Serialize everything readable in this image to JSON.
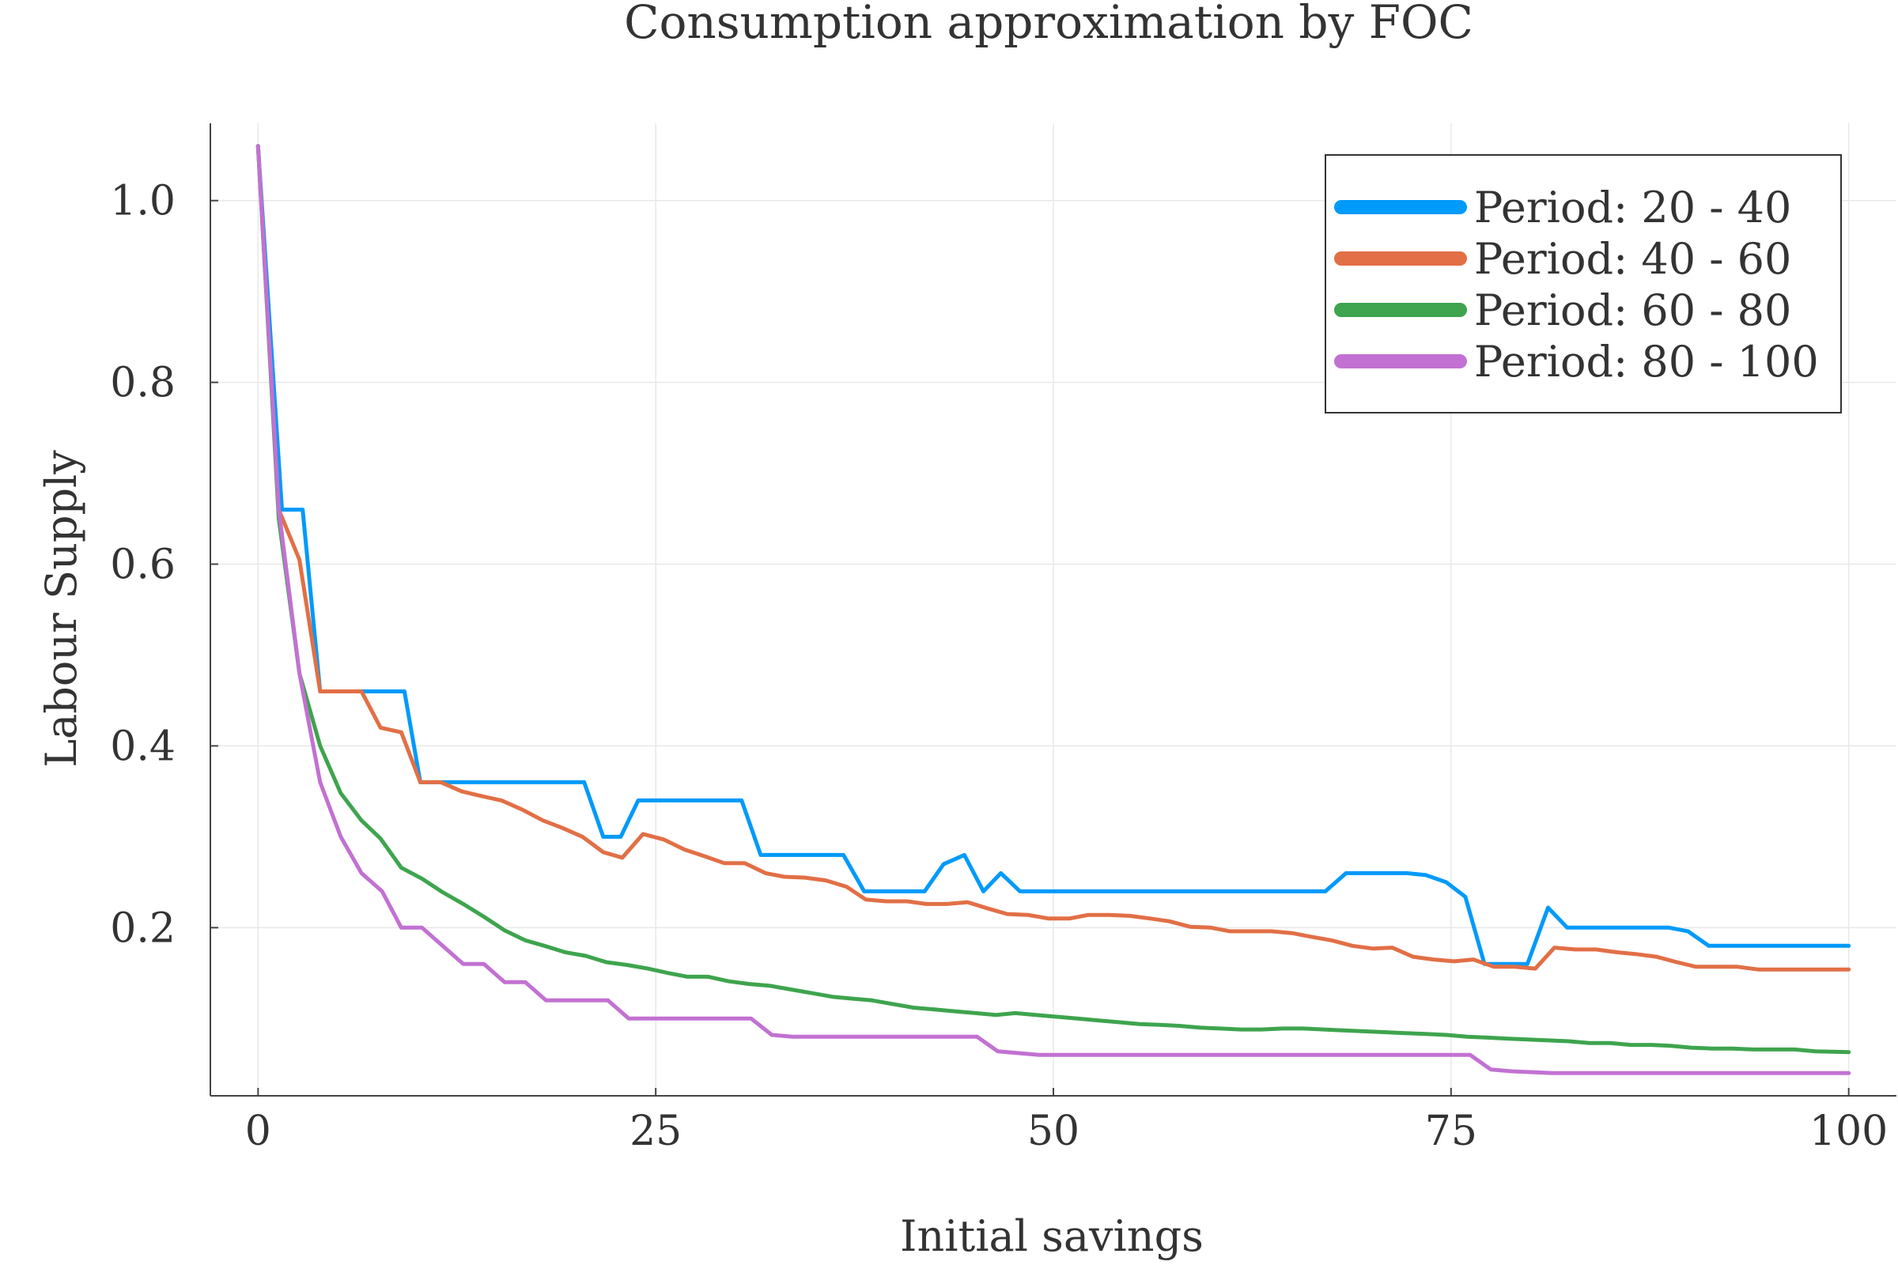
{
  "chart_data": {
    "type": "line",
    "title": "Consumption approximation by FOC",
    "xlabel": "Initial savings",
    "ylabel": "Labour Supply",
    "xlim": [
      -3,
      103
    ],
    "ylim": [
      0.015,
      1.085
    ],
    "xticks": [
      0,
      25,
      50,
      75,
      100
    ],
    "xtick_labels": [
      "0",
      "25",
      "50",
      "75",
      "100"
    ],
    "yticks": [
      0.2,
      0.4,
      0.6,
      0.8,
      1.0
    ],
    "ytick_labels": [
      "0.2",
      "0.4",
      "0.6",
      "0.8",
      "1.0"
    ],
    "grid": true,
    "legend_position": "top-right",
    "series": [
      {
        "name": "Period: 20 - 40",
        "color": "#009AFA",
        "x": [
          0,
          1.5,
          2.8,
          3.9,
          6.5,
          9.2,
          10.2,
          20.5,
          21.7,
          22.8,
          23.9,
          30.4,
          31.6,
          36.8,
          38.1,
          41.9,
          43.1,
          44.4,
          45.6,
          46.7,
          47.9,
          67.1,
          68.4,
          72.2,
          73.4,
          74.7,
          75.9,
          77.1,
          79.8,
          81.1,
          82.3,
          88.7,
          89.9,
          91.2,
          100
        ],
        "values": [
          1.06,
          0.66,
          0.66,
          0.46,
          0.46,
          0.46,
          0.36,
          0.36,
          0.3,
          0.3,
          0.34,
          0.34,
          0.28,
          0.28,
          0.24,
          0.24,
          0.27,
          0.28,
          0.24,
          0.26,
          0.24,
          0.24,
          0.26,
          0.26,
          0.258,
          0.25,
          0.234,
          0.16,
          0.16,
          0.222,
          0.2,
          0.2,
          0.196,
          0.18,
          0.18
        ]
      },
      {
        "name": "Period: 40 - 60",
        "color": "#E26F46",
        "x": [
          0,
          1.3,
          2.6,
          3.9,
          6.5,
          7.7,
          9.0,
          10.2,
          11.5,
          12.8,
          14.0,
          15.3,
          16.6,
          17.9,
          19.1,
          20.4,
          21.7,
          22.9,
          24.2,
          25.5,
          26.8,
          28.0,
          29.3,
          30.6,
          31.9,
          33.1,
          34.4,
          35.7,
          37.0,
          38.2,
          39.5,
          40.8,
          42.0,
          43.3,
          44.6,
          45.9,
          47.1,
          48.4,
          49.7,
          51.0,
          52.2,
          53.5,
          54.8,
          56.1,
          57.3,
          58.6,
          59.9,
          61.1,
          62.4,
          63.7,
          65.0,
          66.2,
          67.5,
          68.8,
          70.1,
          71.3,
          72.6,
          73.9,
          75.2,
          76.4,
          77.7,
          79.0,
          80.3,
          81.5,
          82.8,
          84.1,
          85.4,
          86.6,
          87.9,
          89.2,
          90.4,
          91.7,
          93.0,
          94.3,
          95.5,
          96.8,
          98.1,
          100
        ],
        "values": [
          1.06,
          0.66,
          0.605,
          0.46,
          0.46,
          0.42,
          0.415,
          0.36,
          0.36,
          0.35,
          0.345,
          0.34,
          0.33,
          0.318,
          0.31,
          0.3,
          0.283,
          0.277,
          0.303,
          0.297,
          0.286,
          0.279,
          0.271,
          0.271,
          0.26,
          0.256,
          0.255,
          0.252,
          0.245,
          0.231,
          0.229,
          0.229,
          0.226,
          0.226,
          0.228,
          0.221,
          0.215,
          0.214,
          0.21,
          0.21,
          0.214,
          0.214,
          0.213,
          0.21,
          0.207,
          0.201,
          0.2,
          0.196,
          0.196,
          0.196,
          0.194,
          0.19,
          0.186,
          0.18,
          0.177,
          0.178,
          0.168,
          0.165,
          0.163,
          0.165,
          0.157,
          0.157,
          0.155,
          0.178,
          0.176,
          0.176,
          0.173,
          0.171,
          0.168,
          0.162,
          0.157,
          0.157,
          0.157,
          0.154,
          0.154,
          0.154,
          0.154,
          0.154
        ]
      },
      {
        "name": "Period: 60 - 80",
        "color": "#3EA44E",
        "x": [
          0,
          1.3,
          2.6,
          3.9,
          5.2,
          6.5,
          7.7,
          9.0,
          10.3,
          11.6,
          12.9,
          14.2,
          15.5,
          16.8,
          18.0,
          19.3,
          20.6,
          21.9,
          23.2,
          24.5,
          25.8,
          27.0,
          28.3,
          29.6,
          30.9,
          32.2,
          33.5,
          34.8,
          36.1,
          37.3,
          38.6,
          39.9,
          41.2,
          42.5,
          43.8,
          45.1,
          46.4,
          47.6,
          48.9,
          50.2,
          51.5,
          52.8,
          54.1,
          55.4,
          56.7,
          57.9,
          59.2,
          60.5,
          61.8,
          63.1,
          64.4,
          65.7,
          67.0,
          68.2,
          69.5,
          70.8,
          72.1,
          73.4,
          74.7,
          76.0,
          77.3,
          78.5,
          79.8,
          81.1,
          82.4,
          83.7,
          85.0,
          86.3,
          87.6,
          88.8,
          90.1,
          91.4,
          92.7,
          94.0,
          95.3,
          96.6,
          97.9,
          100
        ],
        "values": [
          1.06,
          0.65,
          0.48,
          0.4,
          0.348,
          0.318,
          0.298,
          0.266,
          0.254,
          0.239,
          0.226,
          0.212,
          0.197,
          0.186,
          0.18,
          0.173,
          0.169,
          0.162,
          0.159,
          0.155,
          0.15,
          0.146,
          0.146,
          0.141,
          0.138,
          0.136,
          0.132,
          0.128,
          0.124,
          0.122,
          0.12,
          0.116,
          0.112,
          0.11,
          0.108,
          0.106,
          0.104,
          0.106,
          0.104,
          0.102,
          0.1,
          0.098,
          0.096,
          0.094,
          0.093,
          0.092,
          0.09,
          0.089,
          0.088,
          0.088,
          0.089,
          0.089,
          0.088,
          0.087,
          0.086,
          0.085,
          0.084,
          0.083,
          0.082,
          0.08,
          0.079,
          0.078,
          0.077,
          0.076,
          0.075,
          0.073,
          0.073,
          0.071,
          0.071,
          0.07,
          0.068,
          0.067,
          0.067,
          0.066,
          0.066,
          0.066,
          0.064,
          0.063
        ]
      },
      {
        "name": "Period: 80 - 100",
        "color": "#C271D2",
        "x": [
          0,
          1.3,
          2.6,
          3.9,
          5.2,
          6.5,
          7.8,
          9.0,
          10.3,
          11.6,
          12.9,
          14.2,
          15.5,
          16.8,
          18.1,
          19.4,
          20.7,
          22.0,
          23.3,
          24.5,
          25.8,
          27.1,
          28.4,
          29.7,
          31.0,
          32.3,
          33.6,
          34.9,
          36.2,
          37.5,
          38.8,
          40.0,
          41.3,
          42.6,
          43.9,
          45.2,
          46.5,
          47.8,
          49.1,
          50.4,
          51.7,
          53.0,
          54.3,
          55.6,
          56.8,
          58.1,
          59.4,
          60.7,
          62.0,
          63.3,
          64.6,
          65.9,
          67.2,
          68.5,
          69.8,
          71.1,
          72.4,
          73.6,
          74.9,
          76.2,
          77.5,
          78.8,
          80.1,
          81.4,
          82.7,
          84.0,
          85.3,
          86.6,
          87.9,
          89.2,
          90.4,
          91.7,
          93.0,
          94.3,
          95.6,
          96.9,
          98.2,
          100
        ],
        "values": [
          1.06,
          0.66,
          0.48,
          0.36,
          0.3,
          0.26,
          0.24,
          0.2,
          0.2,
          0.18,
          0.16,
          0.16,
          0.14,
          0.14,
          0.12,
          0.12,
          0.12,
          0.12,
          0.1,
          0.1,
          0.1,
          0.1,
          0.1,
          0.1,
          0.1,
          0.082,
          0.08,
          0.08,
          0.08,
          0.08,
          0.08,
          0.08,
          0.08,
          0.08,
          0.08,
          0.08,
          0.064,
          0.062,
          0.06,
          0.06,
          0.06,
          0.06,
          0.06,
          0.06,
          0.06,
          0.06,
          0.06,
          0.06,
          0.06,
          0.06,
          0.06,
          0.06,
          0.06,
          0.06,
          0.06,
          0.06,
          0.06,
          0.06,
          0.06,
          0.06,
          0.044,
          0.042,
          0.041,
          0.04,
          0.04,
          0.04,
          0.04,
          0.04,
          0.04,
          0.04,
          0.04,
          0.04,
          0.04,
          0.04,
          0.04,
          0.04,
          0.04,
          0.04
        ]
      }
    ]
  }
}
